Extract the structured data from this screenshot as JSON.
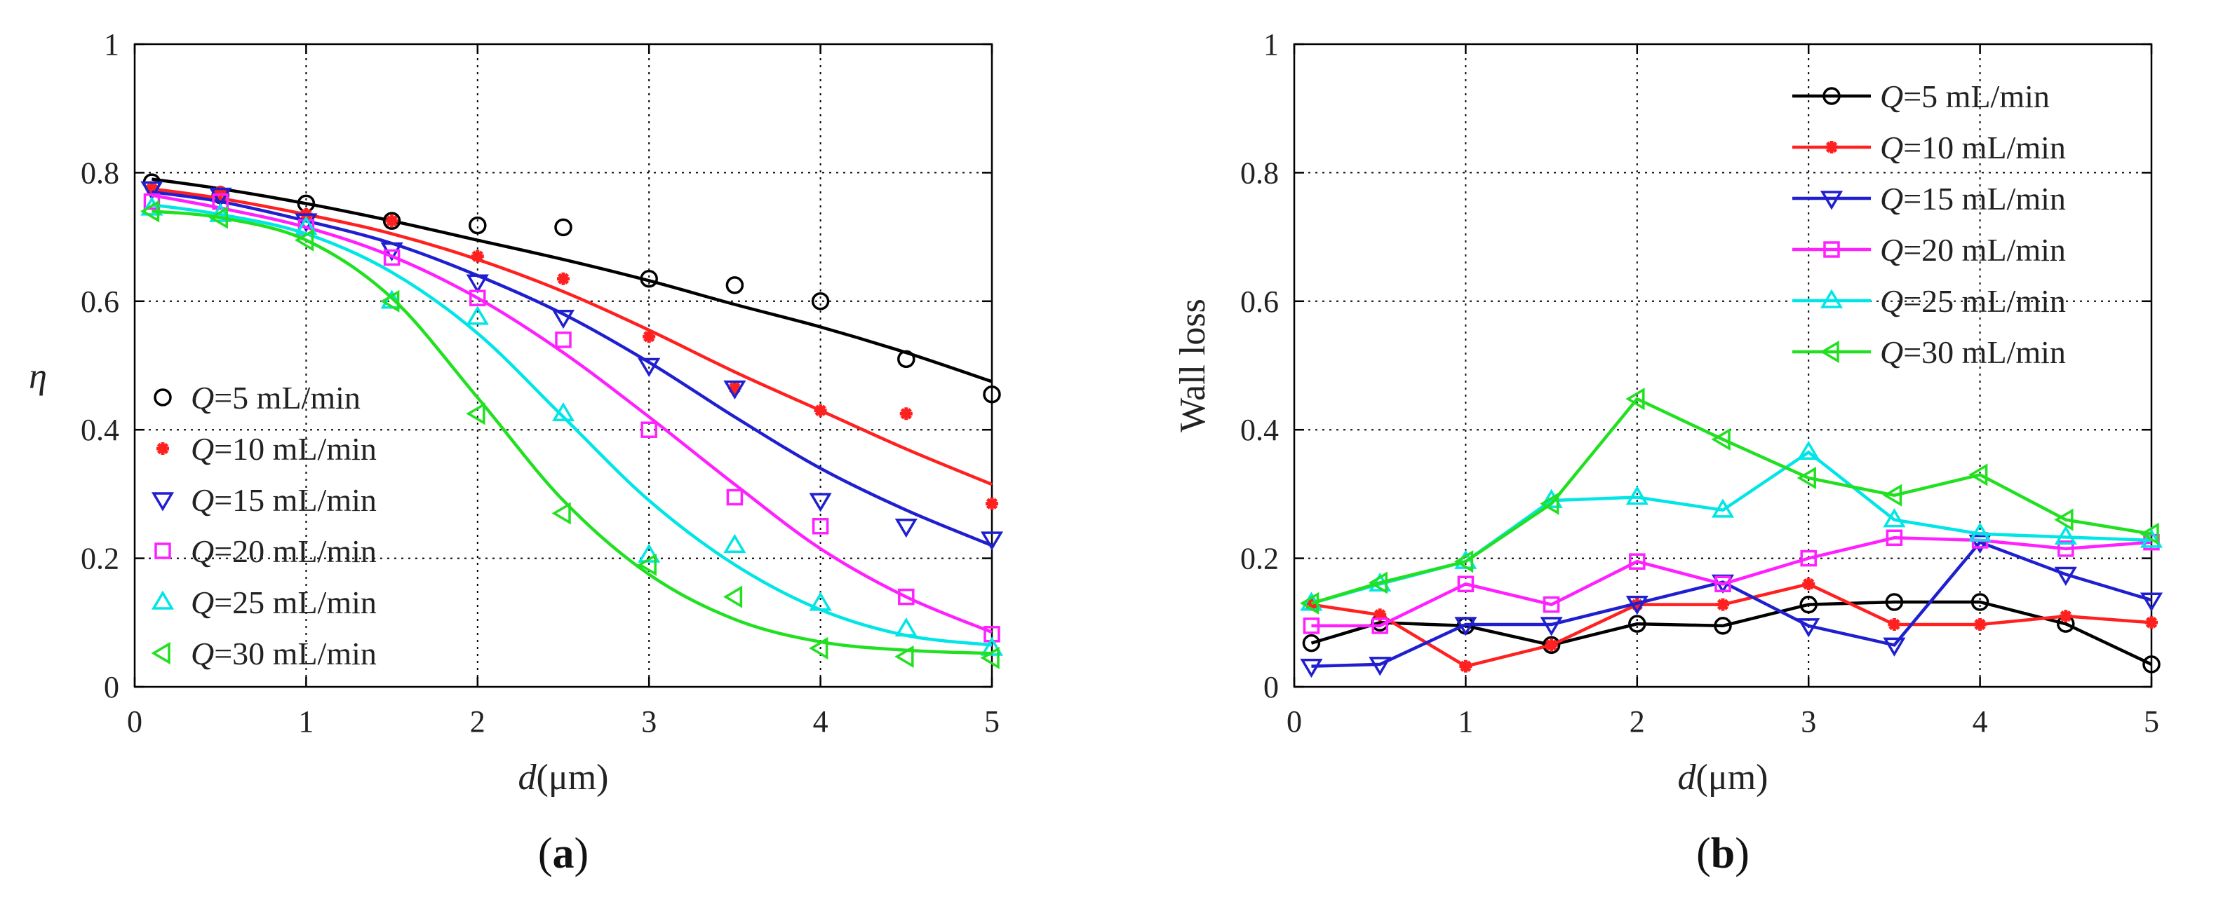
{
  "chart_data": [
    {
      "type": "scatter",
      "panel_label": "a",
      "xlabel": "d",
      "xlabel_unit": "(μm)",
      "ylabel": "η",
      "xlim": [
        0,
        5
      ],
      "ylim": [
        0,
        1
      ],
      "xticks": [
        0,
        1,
        2,
        3,
        4,
        5
      ],
      "yticks": [
        0,
        0.2,
        0.4,
        0.6,
        0.8,
        1
      ],
      "ytick_labels": [
        "0",
        "0.2",
        "0.4",
        "0.6",
        "0.8",
        "1"
      ],
      "grid": true,
      "legend_position": "bottom-left",
      "x": [
        0.1,
        0.5,
        1,
        1.5,
        2,
        2.5,
        3,
        3.5,
        4,
        4.5,
        5
      ],
      "fit_lines": true,
      "series": [
        {
          "name": "=5   mL/min",
          "var": "Q",
          "color": "#000000",
          "marker": "circle",
          "values": [
            0.785,
            0.765,
            0.752,
            0.725,
            0.718,
            0.715,
            0.635,
            0.625,
            0.6,
            0.51,
            0.455
          ],
          "fit": [
            0.79,
            0.775,
            0.752,
            0.725,
            0.695,
            0.665,
            0.632,
            0.595,
            0.56,
            0.52,
            0.475
          ]
        },
        {
          "name": "=10 mL/min",
          "var": "Q",
          "color": "#ff2020",
          "marker": "star",
          "values": [
            0.775,
            0.77,
            0.735,
            0.725,
            0.67,
            0.635,
            0.545,
            0.465,
            0.43,
            0.425,
            0.285
          ],
          "fit": [
            0.775,
            0.76,
            0.735,
            0.705,
            0.665,
            0.615,
            0.555,
            0.49,
            0.43,
            0.37,
            0.315
          ]
        },
        {
          "name": "=15 mL/min",
          "var": "Q",
          "color": "#1f1fd0",
          "marker": "triangle-down",
          "values": [
            0.775,
            0.765,
            0.725,
            0.68,
            0.63,
            0.575,
            0.5,
            0.465,
            0.29,
            0.25,
            0.23
          ],
          "fit": [
            0.77,
            0.755,
            0.725,
            0.69,
            0.64,
            0.58,
            0.505,
            0.42,
            0.34,
            0.275,
            0.22
          ]
        },
        {
          "name": "=20 mL/min",
          "var": "Q",
          "color": "#ff20ff",
          "marker": "square",
          "values": [
            0.755,
            0.755,
            0.715,
            0.668,
            0.605,
            0.54,
            0.4,
            0.295,
            0.25,
            0.14,
            0.082
          ],
          "fit": [
            0.765,
            0.745,
            0.715,
            0.67,
            0.605,
            0.52,
            0.42,
            0.315,
            0.215,
            0.14,
            0.085
          ]
        },
        {
          "name": "=25 mL/min",
          "var": "Q",
          "color": "#00e5e5",
          "marker": "triangle-up",
          "values": [
            0.745,
            0.735,
            0.715,
            0.6,
            0.575,
            0.425,
            0.205,
            0.22,
            0.13,
            0.09,
            0.06
          ],
          "fit": [
            0.75,
            0.735,
            0.705,
            0.645,
            0.55,
            0.42,
            0.29,
            0.19,
            0.12,
            0.08,
            0.065
          ]
        },
        {
          "name": "=30 mL/min",
          "var": "Q",
          "color": "#20e020",
          "marker": "triangle-left",
          "values": [
            0.74,
            0.73,
            0.695,
            0.6,
            0.425,
            0.27,
            0.19,
            0.14,
            0.06,
            0.047,
            0.045
          ],
          "fit": [
            0.74,
            0.73,
            0.695,
            0.605,
            0.45,
            0.29,
            0.175,
            0.105,
            0.07,
            0.057,
            0.052
          ]
        }
      ]
    },
    {
      "type": "line",
      "panel_label": "b",
      "xlabel": "d",
      "xlabel_unit": "(μm)",
      "ylabel": "Wall loss",
      "xlim": [
        0,
        5
      ],
      "ylim": [
        0,
        1
      ],
      "xticks": [
        0,
        1,
        2,
        3,
        4,
        5
      ],
      "yticks": [
        0,
        0.2,
        0.4,
        0.6,
        0.8,
        1
      ],
      "ytick_labels": [
        "0",
        "0.2",
        "0.4",
        "0.6",
        "0.8",
        "1"
      ],
      "grid": true,
      "legend_position": "top-right",
      "x": [
        0.1,
        0.5,
        1,
        1.5,
        2,
        2.5,
        3,
        3.5,
        4,
        4.5,
        5
      ],
      "series": [
        {
          "name": "=5   mL/min",
          "var": "Q",
          "color": "#000000",
          "marker": "circle",
          "values": [
            0.068,
            0.1,
            0.095,
            0.065,
            0.098,
            0.095,
            0.128,
            0.132,
            0.132,
            0.098,
            0.035
          ]
        },
        {
          "name": "=10 mL/min",
          "var": "Q",
          "color": "#ff2020",
          "marker": "star",
          "values": [
            0.128,
            0.112,
            0.032,
            0.065,
            0.128,
            0.128,
            0.16,
            0.097,
            0.097,
            0.11,
            0.1
          ]
        },
        {
          "name": "=15 mL/min",
          "var": "Q",
          "color": "#1f1fd0",
          "marker": "triangle-down",
          "values": [
            0.032,
            0.035,
            0.097,
            0.097,
            0.13,
            0.163,
            0.095,
            0.065,
            0.225,
            0.175,
            0.135
          ]
        },
        {
          "name": "=20 mL/min",
          "var": "Q",
          "color": "#ff20ff",
          "marker": "square",
          "values": [
            0.095,
            0.095,
            0.16,
            0.128,
            0.195,
            0.16,
            0.2,
            0.232,
            0.228,
            0.215,
            0.225
          ]
        },
        {
          "name": "=25 mL/min",
          "var": "Q",
          "color": "#00e5e5",
          "marker": "triangle-up",
          "values": [
            0.13,
            0.16,
            0.195,
            0.29,
            0.295,
            0.275,
            0.365,
            0.26,
            0.238,
            0.233,
            0.228
          ]
        },
        {
          "name": "=30 mL/min",
          "var": "Q",
          "color": "#20e020",
          "marker": "triangle-left",
          "values": [
            0.13,
            0.162,
            0.195,
            0.285,
            0.448,
            0.385,
            0.325,
            0.298,
            0.33,
            0.26,
            0.238
          ]
        }
      ]
    }
  ]
}
